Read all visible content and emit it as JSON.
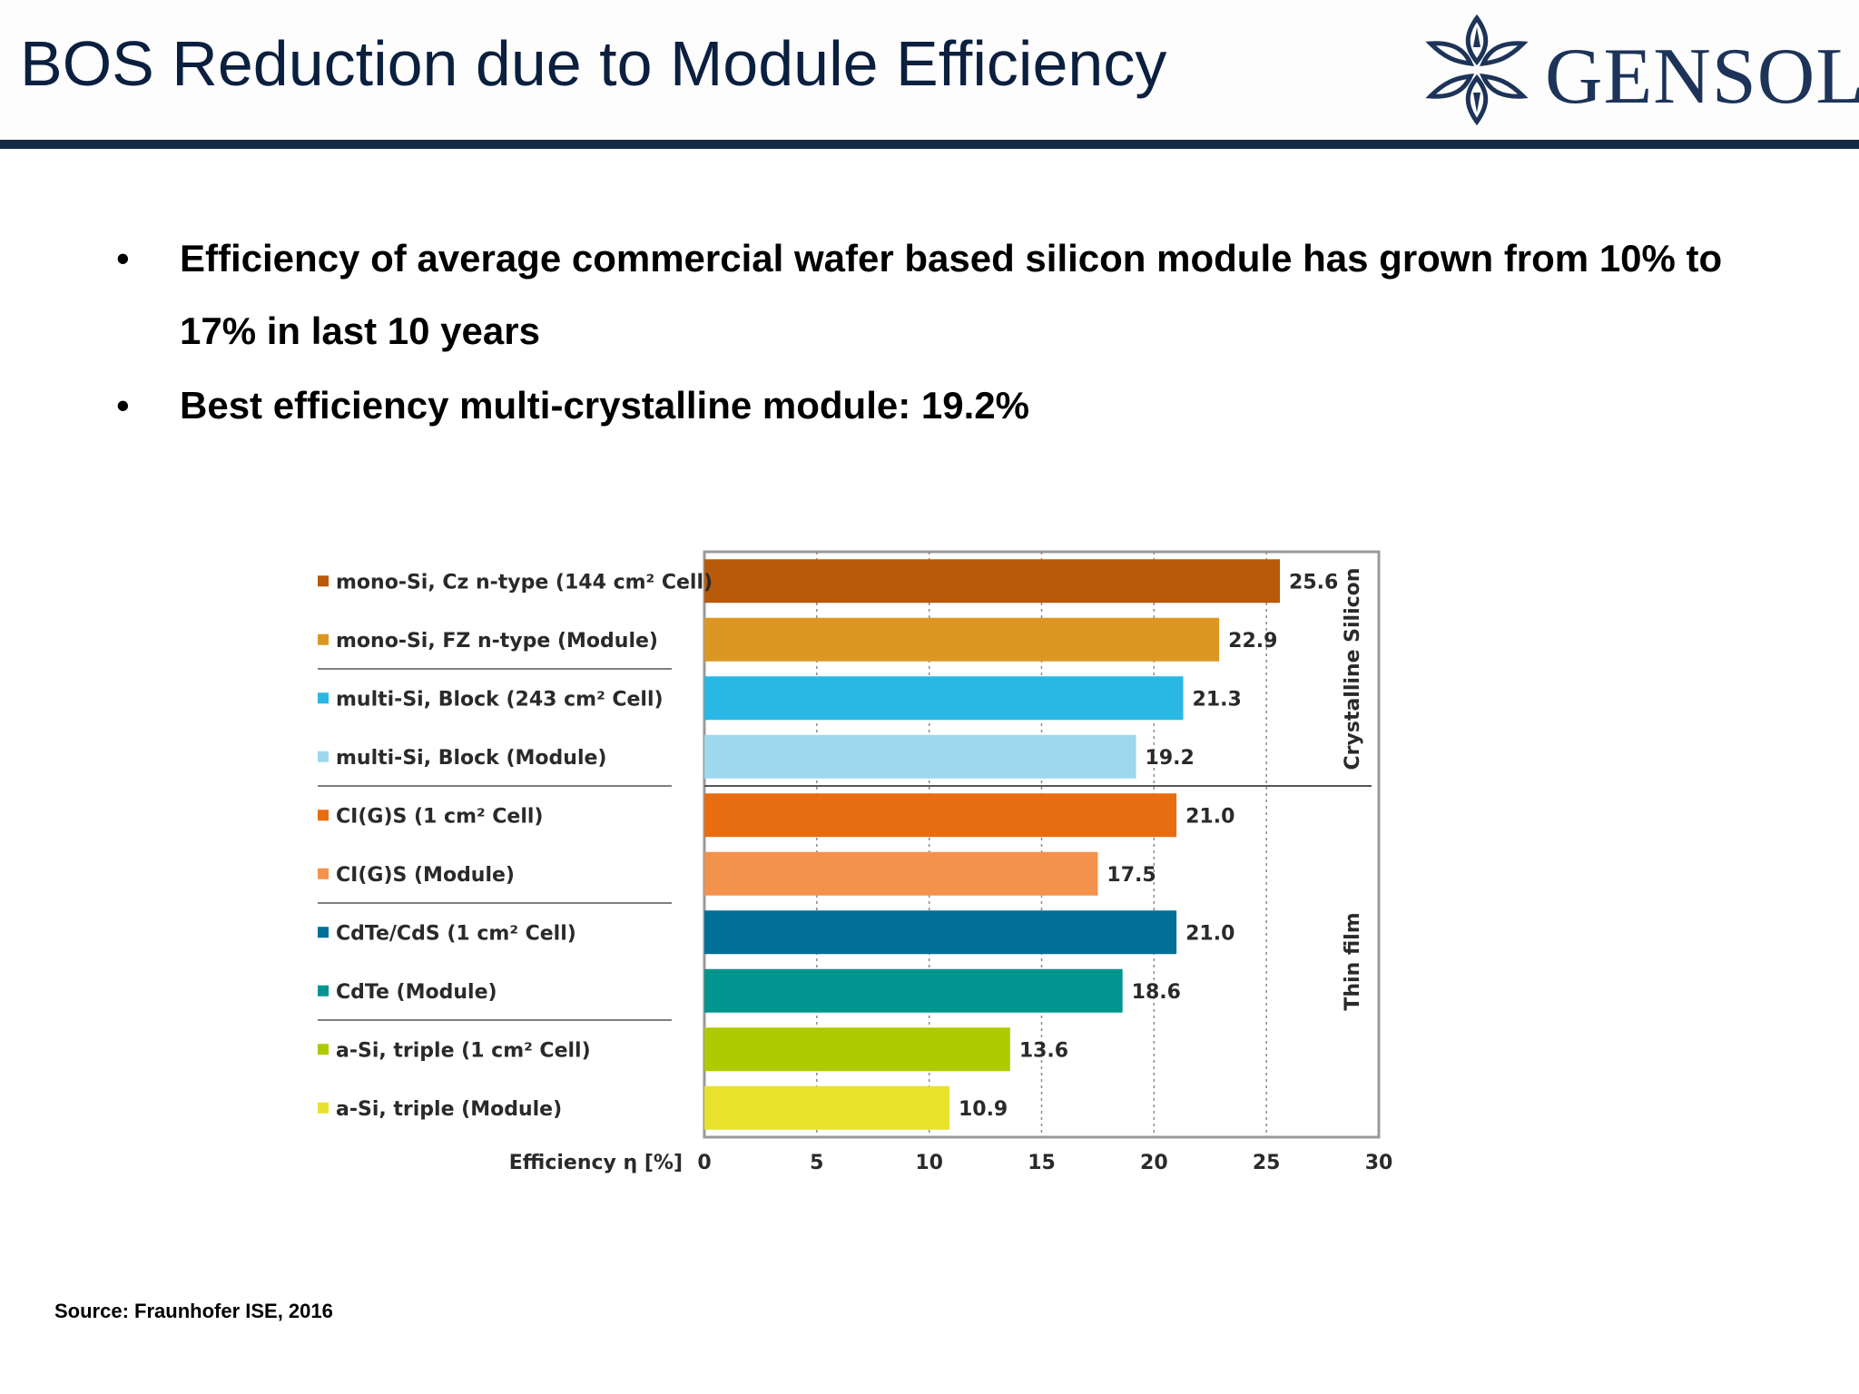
{
  "slide": {
    "title": "BOS Reduction due to Module Efficiency",
    "logo_text": "GENSOL"
  },
  "bullets": [
    {
      "marker": "•",
      "text": "Efficiency of average commercial wafer based silicon module  has grown from 10% to 17% in last 10 years"
    },
    {
      "marker": "•",
      "text": "Best efficiency multi-crystalline module: 19.2%"
    }
  ],
  "source": "Source: Fraunhofer ISE, 2016",
  "colors": {
    "title": "#0b1f3f",
    "header_rule": "#142a43",
    "logo": "#1d3358"
  },
  "chart_data": {
    "type": "bar",
    "orientation": "horizontal",
    "xlabel": "Efficiency η [%]",
    "xlim": [
      0,
      30
    ],
    "xticks": [
      0,
      5,
      10,
      15,
      20,
      25,
      30
    ],
    "grid": "vertical dotted",
    "categories": [
      "mono-Si, Cz n-type (144 cm² Cell)",
      "mono-Si, FZ n-type (Module)",
      "multi-Si, Block (243 cm² Cell)",
      "multi-Si, Block (Module)",
      "CI(G)S (1 cm² Cell)",
      "CI(G)S (Module)",
      "CdTe/CdS (1 cm² Cell)",
      "CdTe (Module)",
      "a-Si, triple (1 cm² Cell)",
      "a-Si, triple (Module)"
    ],
    "values": [
      25.6,
      22.9,
      21.3,
      19.2,
      21.0,
      17.5,
      21.0,
      18.6,
      13.6,
      10.9
    ],
    "value_labels": [
      "25.6",
      "22.9",
      "21.3",
      "19.2",
      "21.0",
      "17.5",
      "21.0",
      "18.6",
      "13.6",
      "10.9"
    ],
    "colors": [
      "#b85a0a",
      "#dc9722",
      "#29b8e3",
      "#9dd8ee",
      "#e86c10",
      "#f2924c",
      "#016f96",
      "#00958e",
      "#aeca00",
      "#e8e22c"
    ],
    "groups": [
      {
        "label": "Crystalline Silicon",
        "start": 0,
        "end": 3
      },
      {
        "label": "Thin film",
        "start": 4,
        "end": 9
      }
    ],
    "separators_after": [
      1,
      3,
      5,
      7
    ]
  }
}
